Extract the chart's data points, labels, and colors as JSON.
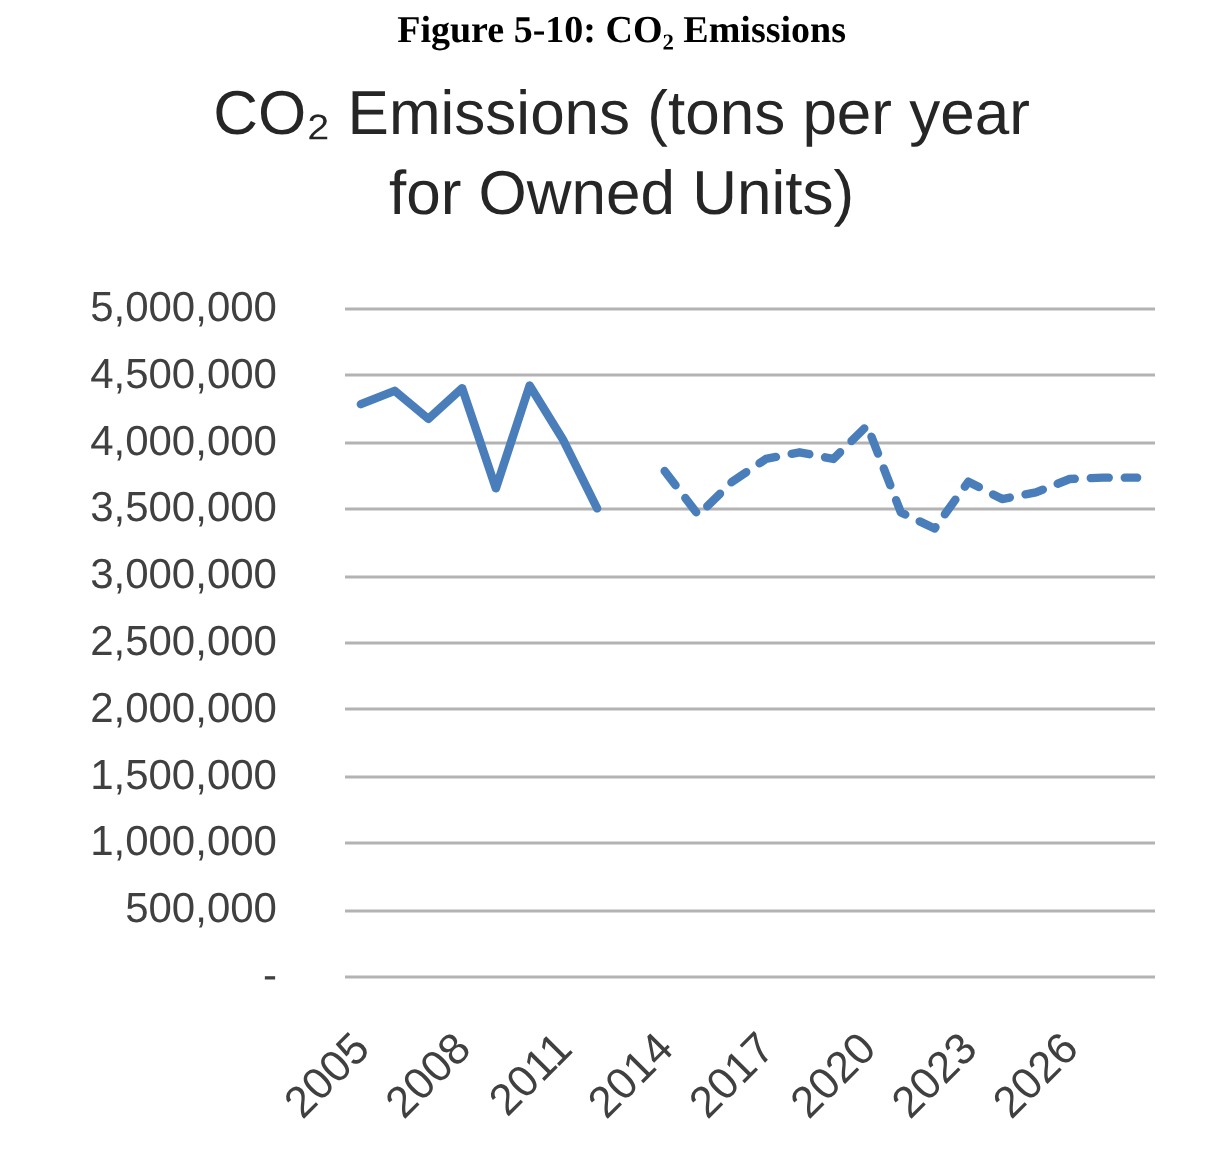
{
  "chart_data": {
    "type": "line",
    "title": "Figure 5-10: CO₂ Emissions",
    "subtitle": "CO₂ Emissions (tons per year for Owned Units)",
    "categories": [
      "2005",
      null,
      null,
      "2008",
      null,
      null,
      "2011",
      null,
      null,
      "2014",
      null,
      null,
      "2017",
      null,
      null,
      "2020",
      null,
      null,
      "2023",
      null,
      null,
      "2026",
      null,
      null
    ],
    "series": [
      {
        "color": "#4a7ebb",
        "line_style": "solid",
        "values": [
          4280000,
          4380000,
          4170000,
          4400000,
          3650000,
          4420000,
          4010000,
          3500000,
          null,
          null,
          null,
          null,
          null,
          null,
          null,
          null,
          null,
          null,
          null,
          null,
          null,
          null,
          null,
          null
        ]
      },
      {
        "color": "#4a7ebb",
        "line_style": "dashed",
        "values": [
          null,
          null,
          null,
          null,
          null,
          null,
          null,
          null,
          null,
          3780000,
          3450000,
          3700000,
          3870000,
          3920000,
          3870000,
          4120000,
          3470000,
          3350000,
          3700000,
          3570000,
          3620000,
          3720000,
          3730000,
          3730000
        ]
      }
    ],
    "ylim": [
      0,
      5000000
    ],
    "yticks": [
      {
        "value": 0,
        "label": "-"
      },
      {
        "value": 500000,
        "label": "500,000"
      },
      {
        "value": 1000000,
        "label": "1,000,000"
      },
      {
        "value": 1500000,
        "label": "1,500,000"
      },
      {
        "value": 2000000,
        "label": "2,000,000"
      },
      {
        "value": 2500000,
        "label": "2,500,000"
      },
      {
        "value": 3000000,
        "label": "3,000,000"
      },
      {
        "value": 3500000,
        "label": "3,500,000"
      },
      {
        "value": 4000000,
        "label": "4,000,000"
      },
      {
        "value": 4500000,
        "label": "4,500,000"
      },
      {
        "value": 5000000,
        "label": "5,000,000"
      }
    ],
    "grid": "y"
  }
}
